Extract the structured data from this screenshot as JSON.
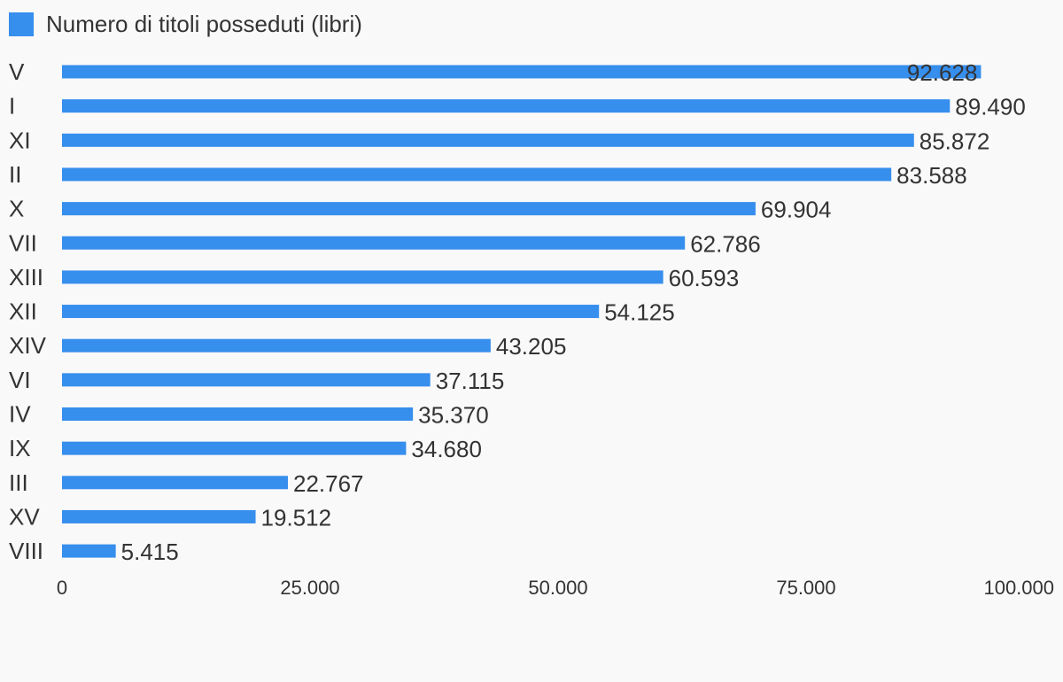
{
  "colors": {
    "background": "#f9f9f9",
    "bar": "#368eed",
    "text": "#333333"
  },
  "legend": {
    "label": "Numero di titoli posseduti (libri)",
    "position": "top-left"
  },
  "chart_data": {
    "type": "bar",
    "orientation": "horizontal",
    "categories": [
      "V",
      "I",
      "XI",
      "II",
      "X",
      "VII",
      "XIII",
      "XII",
      "XIV",
      "VI",
      "IV",
      "IX",
      "III",
      "XV",
      "VIII"
    ],
    "series": [
      {
        "name": "Numero di titoli posseduti (libri)",
        "values": [
          92628,
          89490,
          85872,
          83588,
          69904,
          62786,
          60593,
          54125,
          43205,
          37115,
          35370,
          34680,
          22767,
          19512,
          5415
        ]
      }
    ],
    "value_labels": [
      "92.628",
      "89.490",
      "85.872",
      "83.588",
      "69.904",
      "62.786",
      "60.593",
      "54.125",
      "43.205",
      "37.115",
      "35.370",
      "34.680",
      "22.767",
      "19.512",
      "5.415"
    ],
    "x_ticks": [
      0,
      25000,
      50000,
      75000,
      100000
    ],
    "x_tick_labels": [
      "0",
      "25.000",
      "50.000",
      "75.000",
      "100.000"
    ],
    "xlim": [
      0,
      100000
    ],
    "grid": false,
    "title": "",
    "xlabel": "",
    "ylabel": ""
  }
}
